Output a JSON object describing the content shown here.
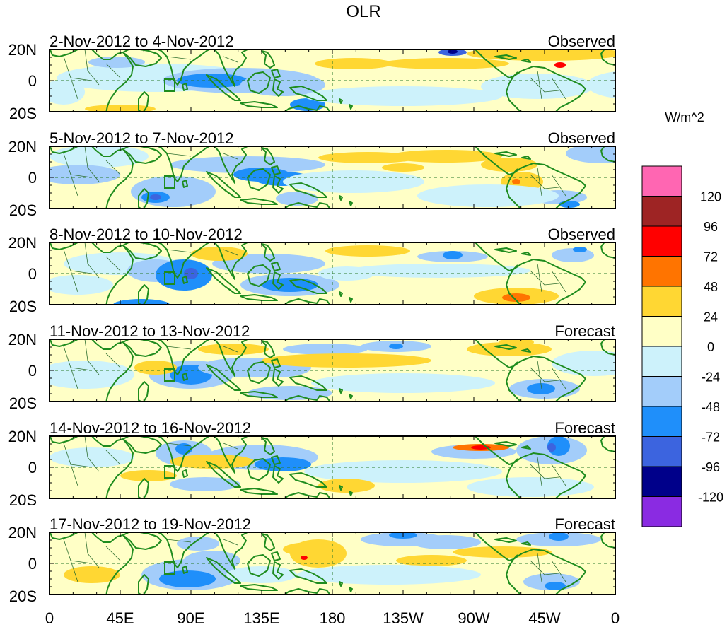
{
  "title": "OLR",
  "unit_label": "W/m^2",
  "lat_labels": [
    "20N",
    "0",
    "20S"
  ],
  "lon_labels": [
    "0",
    "45E",
    "90E",
    "135E",
    "180",
    "135W",
    "90W",
    "45W",
    "0"
  ],
  "panels": [
    {
      "date_range": "2-Nov-2012 to 4-Nov-2012",
      "status": "Observed"
    },
    {
      "date_range": "5-Nov-2012 to 7-Nov-2012",
      "status": "Observed"
    },
    {
      "date_range": "8-Nov-2012 to 10-Nov-2012",
      "status": "Observed"
    },
    {
      "date_range": "11-Nov-2012 to 13-Nov-2012",
      "status": "Forecast"
    },
    {
      "date_range": "14-Nov-2012 to 16-Nov-2012",
      "status": "Forecast"
    },
    {
      "date_range": "17-Nov-2012 to 19-Nov-2012",
      "status": "Forecast"
    }
  ],
  "legend": {
    "colors": [
      "#ff66b2",
      "#9e2424",
      "#ff0000",
      "#ff7400",
      "#ffd733",
      "#ffffc6",
      "#cdf2fb",
      "#a3cdfa",
      "#1f8ffa",
      "#3c64df",
      "#00008a",
      "#8a2be2"
    ],
    "labels": [
      "120",
      "96",
      "72",
      "48",
      "24",
      "0",
      "-24",
      "-48",
      "-72",
      "-96",
      "-120"
    ]
  },
  "colors": {
    "coast": "#1e8c1e",
    "border": "#2e6e2e",
    "background_field": "#ffffc6"
  }
}
